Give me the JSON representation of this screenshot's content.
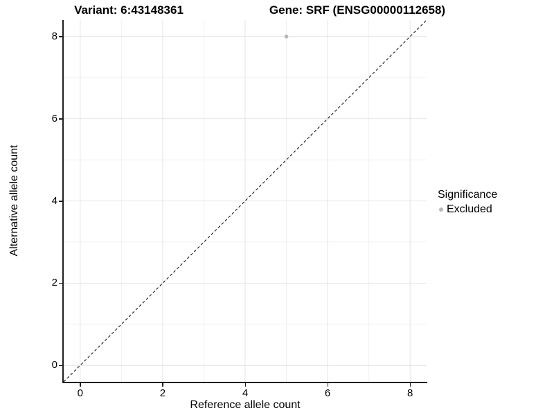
{
  "chart_data": {
    "type": "scatter",
    "titles": {
      "left": "Variant: 6:43148361",
      "right": "Gene: SRF (ENSG00000112658)"
    },
    "xlabel": "Reference allele count",
    "ylabel": "Alternative allele count",
    "xlim": [
      -0.4,
      8.4
    ],
    "ylim": [
      -0.4,
      8.4
    ],
    "xticks": [
      0,
      2,
      4,
      6,
      8
    ],
    "yticks": [
      0,
      2,
      4,
      6,
      8
    ],
    "minor_xticks": [
      1,
      3,
      5,
      7
    ],
    "minor_yticks": [
      1,
      3,
      5,
      7
    ],
    "grid": "major+minor",
    "points": [
      {
        "x": 5,
        "y": 8,
        "significance": "Excluded"
      }
    ],
    "reference_line": {
      "slope": 1,
      "intercept": 0,
      "style": "dashed",
      "color": "#000000"
    },
    "legend": {
      "title": "Significance",
      "position": "right",
      "entries": [
        {
          "label": "Excluded",
          "color": "#b7b7b7",
          "marker": "circle"
        }
      ]
    },
    "colors": {
      "point": "#b7b7b7",
      "grid_major": "#e4e4e4",
      "grid_minor": "#f0f0f0",
      "axis_line": "#1f1f1f",
      "background": "#ffffff"
    }
  }
}
